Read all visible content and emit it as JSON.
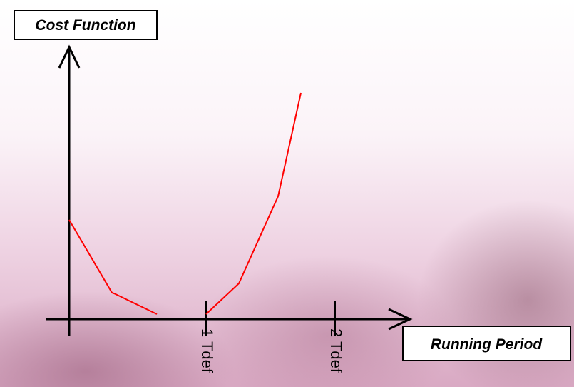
{
  "diagram": {
    "y_axis_label": "Cost Function",
    "x_axis_label": "Running Period",
    "tick_labels": [
      "1 Tdef",
      "2 Tdef"
    ]
  }
}
